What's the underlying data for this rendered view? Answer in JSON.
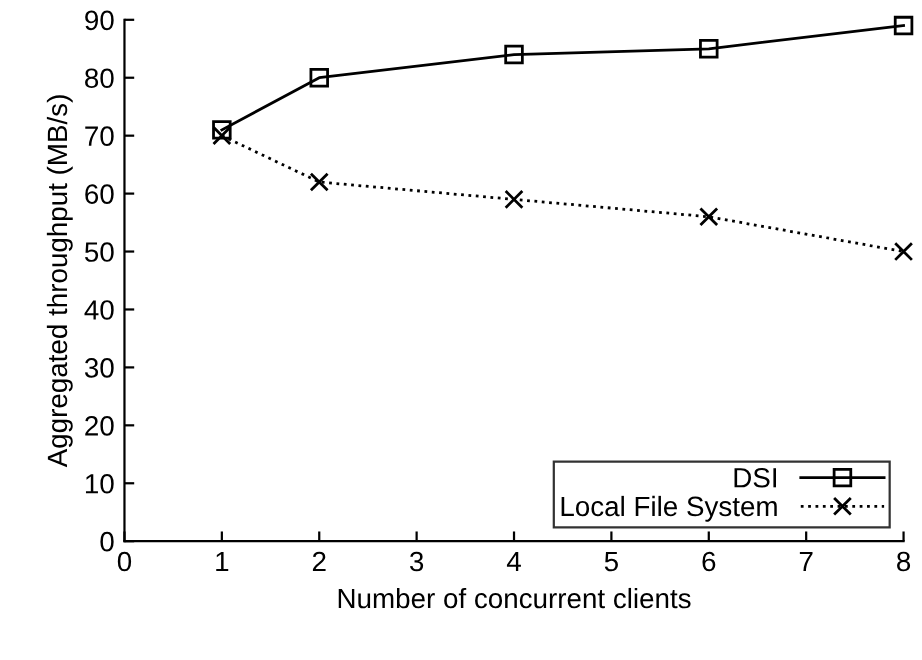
{
  "chart_data": {
    "type": "line",
    "xlabel": "Number of concurrent clients",
    "ylabel": "Aggregated throughput (MB/s)",
    "x": [
      1,
      2,
      4,
      6,
      8
    ],
    "series": [
      {
        "name": "DSI",
        "color": "#000000",
        "values": [
          71,
          80,
          84,
          85,
          89
        ],
        "marker": "square",
        "line_style": "solid"
      },
      {
        "name": "Local File System",
        "color": "#000000",
        "values": [
          70,
          62,
          59,
          56,
          50
        ],
        "marker": "cross",
        "line_style": "dotted"
      }
    ],
    "xlim": [
      0,
      8
    ],
    "xticks": [
      0,
      1,
      2,
      3,
      4,
      5,
      6,
      7,
      8
    ],
    "ylim": [
      0,
      90
    ],
    "yticks": [
      0,
      10,
      20,
      30,
      40,
      50,
      60,
      70,
      80,
      90
    ],
    "legend": "bottom right",
    "grid": false
  }
}
